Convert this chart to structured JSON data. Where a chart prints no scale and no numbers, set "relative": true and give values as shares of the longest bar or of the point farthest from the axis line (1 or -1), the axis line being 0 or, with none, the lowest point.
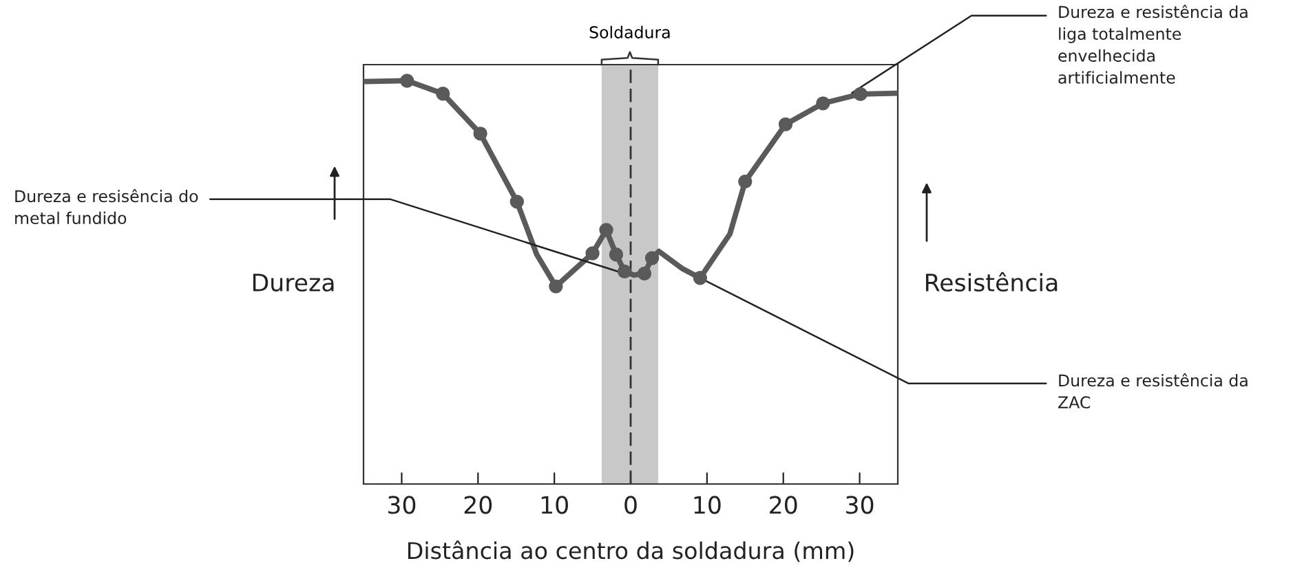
{
  "chart_data": {
    "type": "line",
    "relative": true,
    "xlabel": "Distância ao centro da soldadura (mm)",
    "ylabel": "Dureza",
    "y2label": "Resistência",
    "xlim": [
      -35,
      35
    ],
    "xticks": [
      {
        "value": -30,
        "label": "30"
      },
      {
        "value": -20,
        "label": "20"
      },
      {
        "value": -10,
        "label": "10"
      },
      0,
      10,
      20,
      30
    ],
    "tick_labels": "x",
    "grid": false,
    "bands": [
      {
        "axis": "x",
        "from": -3.8,
        "to": 3.6,
        "label": "Soldadura",
        "color": "#c8c8c8"
      }
    ],
    "ref_lines": [
      {
        "axis": "x",
        "value": 0,
        "color": "#333333",
        "line_style": "dashed"
      }
    ],
    "series": [
      {
        "color": "#5a5a5a",
        "marker": "none",
        "x": [
          -35,
          -29.3,
          -24.6,
          -19.7,
          -14.9,
          -12.3,
          -9.8,
          -5.0,
          -3.2,
          -1.9,
          -0.8,
          0.4,
          1.8,
          2.8,
          3.7,
          6.7,
          9.1,
          13.0,
          15.0,
          20.3,
          25.2,
          30.1,
          35
        ],
        "values": [
          0.998,
          1,
          0.968,
          0.869,
          0.7,
          0.569,
          0.49,
          0.572,
          0.63,
          0.569,
          0.527,
          0.518,
          0.522,
          0.56,
          0.577,
          0.535,
          0.511,
          0.62,
          0.75,
          0.892,
          0.944,
          0.967,
          0.969
        ]
      },
      {
        "type": "scatter",
        "color": "#5a5a5a",
        "marker": "circle",
        "x": [
          -29.3,
          -24.6,
          -19.7,
          -14.9,
          -9.8,
          -5.0,
          -3.2,
          -1.9,
          -0.8,
          1.8,
          2.8,
          9.1,
          15.0,
          20.3,
          25.2,
          30.1
        ],
        "values": [
          1,
          0.968,
          0.869,
          0.7,
          0.49,
          0.572,
          0.63,
          0.569,
          0.527,
          0.522,
          0.56,
          0.511,
          0.75,
          0.892,
          0.944,
          0.967
        ]
      }
    ],
    "annotations": [
      {
        "text": "Dureza e resisência do\nmetal fundido",
        "x": -0.5,
        "y": 0.52
      },
      {
        "text": "Dureza e resistência da\nliga totalmente\nenvelhecida\nartificialmente",
        "x": 29,
        "y": 0.97
      },
      {
        "text": "Dureza e resistência da\nZAC",
        "x": 9.1,
        "y": 0.511
      }
    ]
  }
}
